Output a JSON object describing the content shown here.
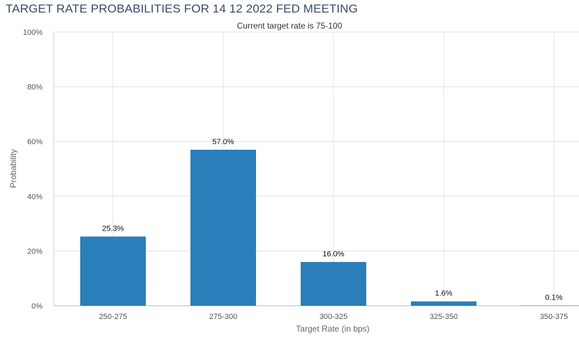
{
  "chart_data": {
    "type": "bar",
    "title": "TARGET RATE PROBABILITIES FOR 14 12 2022 FED MEETING",
    "subtitle": "Current target rate is 75-100",
    "xlabel": "Target Rate (in bps)",
    "ylabel": "Probability",
    "categories": [
      "250-275",
      "275-300",
      "300-325",
      "325-350",
      "350-375"
    ],
    "values": [
      25.3,
      57.0,
      16.0,
      1.6,
      0.1
    ],
    "data_labels": [
      "25.3%",
      "57.0%",
      "16.0%",
      "1.6%",
      "0.1%"
    ],
    "ylim": [
      0,
      100
    ],
    "y_ticks": [
      0,
      20,
      40,
      60,
      80,
      100
    ],
    "y_tick_labels": [
      "0%",
      "20%",
      "40%",
      "60%",
      "80%",
      "100%"
    ],
    "bar_color": "#2a7fba",
    "grid": true,
    "legend": "none"
  }
}
